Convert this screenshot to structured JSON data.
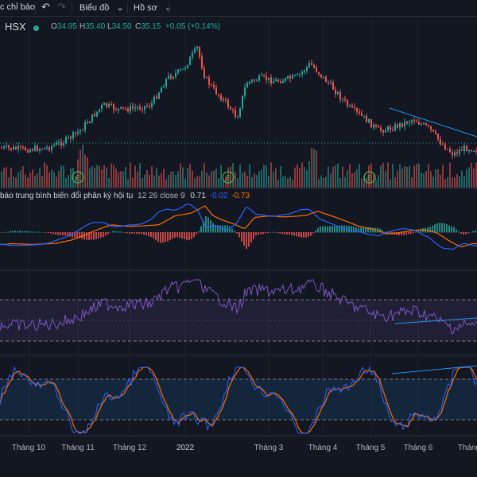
{
  "toolbar": {
    "indicators_label": "c chỉ báo",
    "undo_icon": "undo-icon",
    "redo_icon": "redo-icon",
    "chart_label": "Biểu đồ",
    "profile_label": "Hồ sơ",
    "chevron_icon": "chevron-down-icon"
  },
  "symbol": {
    "exchange": "HSX",
    "open_label": "O",
    "open": "34.95",
    "high_label": "H",
    "high": "35.40",
    "low_label": "L",
    "low": "34.50",
    "close_label": "C",
    "close": "35.15",
    "change": "+0.05 (+0.14%)"
  },
  "macd": {
    "title": "báo trung bình biến đổi phân kỳ hội tụ",
    "params": "12 26 close 9",
    "hist_value": "0.71",
    "macd_value": "-0.02",
    "signal_value": "-0.73"
  },
  "time_axis": [
    "Tháng 10",
    "Tháng 11",
    "Tháng 12",
    "2022",
    "Tháng 3",
    "Tháng 4",
    "Tháng 5",
    "Tháng 6",
    "Tháng"
  ],
  "colors": {
    "up": "#26a69a",
    "down": "#ef5350",
    "macd": "#2962ff",
    "signal": "#ff6d00",
    "rsi": "#7e57c2",
    "stoch_k": "#2962ff",
    "stoch_d": "#ff6d00",
    "trendline": "#2196f3",
    "dividend_marker": "#4caf50"
  },
  "markers": [
    "E",
    "E",
    "E"
  ]
}
